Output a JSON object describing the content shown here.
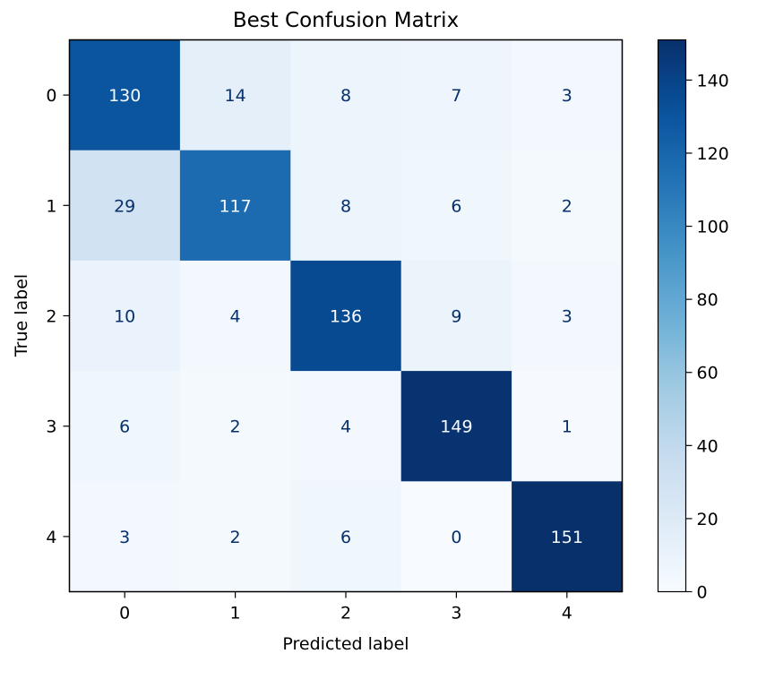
{
  "chart_data": {
    "type": "heatmap",
    "title": "Best Confusion Matrix",
    "xlabel": "Predicted label",
    "ylabel": "True label",
    "x_categories": [
      "0",
      "1",
      "2",
      "3",
      "4"
    ],
    "y_categories": [
      "0",
      "1",
      "2",
      "3",
      "4"
    ],
    "values": [
      [
        130,
        14,
        8,
        7,
        3
      ],
      [
        29,
        117,
        8,
        6,
        2
      ],
      [
        10,
        4,
        136,
        9,
        3
      ],
      [
        6,
        2,
        4,
        149,
        1
      ],
      [
        3,
        2,
        6,
        0,
        151
      ]
    ],
    "colormap": "Blues",
    "colorbar": {
      "range": [
        0,
        151
      ],
      "ticks": [
        0,
        20,
        40,
        60,
        80,
        100,
        120,
        140
      ]
    },
    "grid": false,
    "colors": {
      "cmap_low": "#f7fbff",
      "cmap_high": "#08306b",
      "text_on_light": "#08306b",
      "text_on_dark": "#f7fbff"
    }
  }
}
